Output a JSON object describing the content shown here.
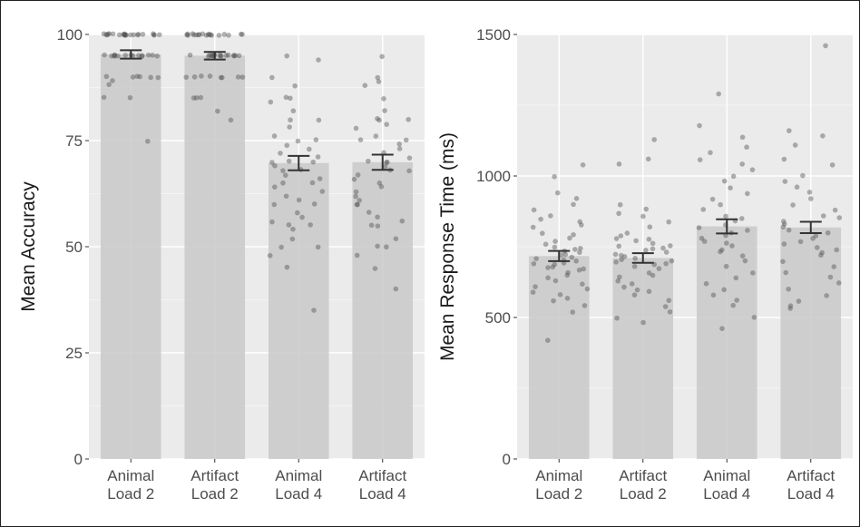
{
  "chart_data": [
    {
      "type": "bar",
      "ylabel": "Mean Accuracy",
      "xlabel": "",
      "ylim": [
        0,
        100
      ],
      "yticks": [
        0,
        25,
        50,
        75,
        100
      ],
      "grid": true,
      "categories": [
        [
          "Animal",
          "Load 2"
        ],
        [
          "Artifact",
          "Load 2"
        ],
        [
          "Animal",
          "Load 4"
        ],
        [
          "Artifact",
          "Load 4"
        ]
      ],
      "values": [
        95.3,
        95.0,
        69.7,
        69.9
      ],
      "error": [
        1.0,
        0.9,
        1.7,
        1.8
      ],
      "points": [
        [
          100,
          100,
          100,
          100,
          100,
          100,
          100,
          100,
          100,
          100,
          100,
          100,
          100,
          100,
          100,
          100,
          100,
          100,
          100,
          100,
          100,
          100,
          100,
          95,
          95,
          95,
          95,
          95,
          95,
          95,
          95,
          95,
          95,
          95,
          95,
          95,
          95,
          95,
          90,
          90,
          90,
          90,
          90,
          90,
          89,
          88,
          85,
          85,
          75
        ],
        [
          100,
          100,
          100,
          100,
          100,
          100,
          100,
          100,
          100,
          100,
          100,
          100,
          100,
          100,
          100,
          100,
          100,
          100,
          100,
          95,
          95,
          95,
          95,
          95,
          95,
          95,
          95,
          95,
          95,
          95,
          95,
          95,
          95,
          95,
          95,
          95,
          90,
          90,
          90,
          90,
          90,
          90,
          90,
          90,
          85,
          85,
          85,
          82,
          80
        ],
        [
          95,
          94,
          90,
          88,
          85,
          85,
          84,
          82,
          80,
          80,
          78,
          76,
          75,
          75,
          74,
          73,
          72,
          71,
          70,
          70,
          70,
          69,
          68,
          68,
          67,
          66,
          65,
          65,
          64,
          63,
          62,
          61,
          60,
          60,
          58,
          57,
          56,
          55,
          55,
          54,
          52,
          50,
          50,
          48,
          45,
          35
        ],
        [
          95,
          90,
          89,
          88,
          85,
          82,
          80,
          80,
          80,
          79,
          78,
          76,
          75,
          75,
          74,
          73,
          72,
          71,
          70,
          70,
          70,
          69,
          68,
          68,
          67,
          66,
          65,
          64,
          63,
          62,
          61,
          60,
          60,
          58,
          57,
          56,
          55,
          55,
          52,
          50,
          50,
          48,
          45,
          40
        ]
      ]
    },
    {
      "type": "bar",
      "ylabel": "Mean Response Time (ms)",
      "xlabel": "",
      "ylim": [
        0,
        1500
      ],
      "yticks": [
        0,
        500,
        1000,
        1500
      ],
      "grid": true,
      "categories": [
        [
          "Animal",
          "Load 2"
        ],
        [
          "Artifact",
          "Load 2"
        ],
        [
          "Animal",
          "Load 4"
        ],
        [
          "Artifact",
          "Load 4"
        ]
      ],
      "values": [
        717,
        710,
        822,
        818
      ],
      "error": [
        18,
        17,
        25,
        20
      ],
      "points": [
        [
          1040,
          1000,
          940,
          920,
          900,
          880,
          860,
          850,
          840,
          830,
          820,
          800,
          790,
          780,
          770,
          760,
          750,
          745,
          740,
          735,
          730,
          725,
          720,
          715,
          710,
          705,
          700,
          695,
          690,
          685,
          680,
          675,
          670,
          665,
          660,
          650,
          640,
          630,
          620,
          610,
          600,
          590,
          580,
          570,
          560,
          540,
          520,
          420
        ],
        [
          1130,
          1060,
          1040,
          900,
          880,
          870,
          860,
          840,
          820,
          800,
          790,
          780,
          775,
          770,
          760,
          755,
          750,
          745,
          740,
          735,
          730,
          725,
          720,
          715,
          710,
          705,
          700,
          695,
          690,
          685,
          680,
          670,
          660,
          650,
          640,
          630,
          620,
          610,
          600,
          590,
          580,
          560,
          540,
          520,
          500,
          480
        ],
        [
          1290,
          1180,
          1140,
          1100,
          1080,
          1060,
          1040,
          1020,
          1000,
          980,
          960,
          940,
          920,
          900,
          880,
          860,
          850,
          840,
          830,
          820,
          810,
          800,
          790,
          780,
          770,
          760,
          750,
          740,
          730,
          720,
          700,
          680,
          660,
          640,
          620,
          600,
          580,
          560,
          540,
          500,
          460
        ],
        [
          1460,
          1160,
          1140,
          1110,
          1060,
          1040,
          1000,
          980,
          960,
          940,
          920,
          900,
          880,
          860,
          850,
          840,
          830,
          820,
          810,
          800,
          790,
          780,
          770,
          760,
          750,
          740,
          730,
          720,
          700,
          680,
          660,
          640,
          620,
          600,
          580,
          560,
          540,
          530
        ]
      ]
    }
  ]
}
